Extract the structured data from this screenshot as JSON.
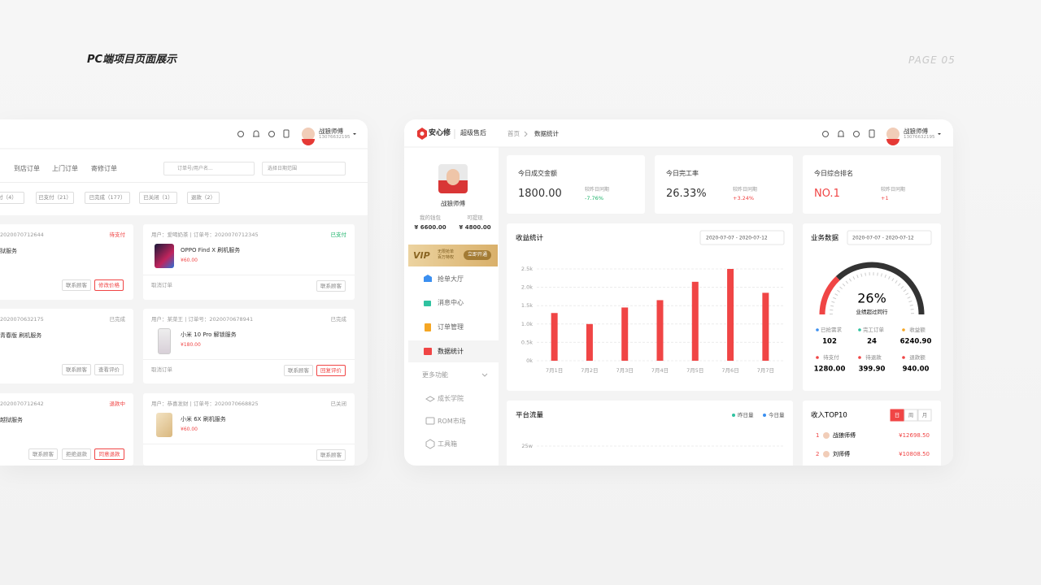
{
  "page": {
    "title": "PC端项目页面展示",
    "page_no": "PAGE 05"
  },
  "left_panel": {
    "user": {
      "name": "战狼师傅",
      "phone": "13076632195"
    },
    "tabs": [
      "到店订单",
      "上门订单",
      "寄修订单"
    ],
    "search_placeholder": "订单号/用户名...",
    "date_placeholder": "选择日期范围",
    "filters": [
      "付（4）",
      "已支付（21）",
      "已完成（177）",
      "已关闭（1）",
      "退款（2）"
    ],
    "orders": [
      {
        "meta": "2020070712644",
        "status": "待支付",
        "service": "狱服务",
        "buttons": [
          "联系顾客",
          "修改价格"
        ]
      },
      {
        "meta": "2020070632175",
        "status": "已完成",
        "service": "青春版 刷机服务",
        "buttons": [
          "联系顾客",
          "查看评价"
        ]
      },
      {
        "meta": "2020070712642",
        "status": "退款中",
        "service": "越狱服务",
        "buttons": [
          "联系顾客",
          "拒绝退款",
          "同意退款"
        ]
      },
      {
        "meta": "用户：爱喝奶茶 | 订单号：2020070712345",
        "status": "已支付",
        "service": "OPPO Find X 刷机服务",
        "price": "¥60.00",
        "cancel": "取消订单",
        "buttons": [
          "联系顾客"
        ]
      },
      {
        "meta": "用户：某菜王 | 订单号：2020070678941",
        "status": "已完成",
        "service": "小米 10 Pro 解锁服务",
        "price": "¥180.00",
        "cancel": "取消订单",
        "buttons": [
          "联系顾客",
          "回复评价"
        ]
      },
      {
        "meta": "用户：恭喜发财 | 订单号：2020070668825",
        "status": "已关闭",
        "service": "小米 6X 刷机服务",
        "price": "¥60.00",
        "buttons": [
          "联系顾客"
        ]
      }
    ]
  },
  "right_panel": {
    "brand": "安心修",
    "product": "超级售后",
    "breadcrumb": [
      "首页",
      "数据统计"
    ],
    "user": {
      "name": "战狼师傅",
      "phone": "13076632195"
    },
    "sidebar": {
      "name": "战狼师傅",
      "wallet_label": "我的钱包",
      "wallet": "¥ 6600.00",
      "withdraw_label": "可提现",
      "withdraw": "¥ 4800.00",
      "vip": "VIP",
      "vip_text": [
        "无限抢单",
        "百万特权"
      ],
      "vip_button": "立即开通",
      "menu": [
        "抢单大厅",
        "消息中心",
        "订单管理",
        "数据统计"
      ],
      "more": "更多功能",
      "sub_menu": [
        "成长学院",
        "ROM市场",
        "工具箱"
      ]
    },
    "stats": [
      {
        "label": "今日成交金额",
        "value": "1800.00",
        "compare_label": "较昨日同期",
        "change": "-7.76%"
      },
      {
        "label": "今日完工率",
        "value": "26.33%",
        "compare_label": "较昨日同期",
        "change": "+3.24%"
      },
      {
        "label": "今日综合排名",
        "value": "NO.1",
        "compare_label": "较昨日同期",
        "change": "+1"
      }
    ],
    "business": {
      "title": "业务数据",
      "date_range": "2020-07-07 - 2020-07-12",
      "gauge": {
        "value": 26,
        "label": "26%",
        "caption": "业绩超过同行"
      },
      "items": [
        {
          "label": "已抢需求",
          "value": "102"
        },
        {
          "label": "完工订单",
          "value": "24"
        },
        {
          "label": "收益额",
          "value": "6240.90"
        },
        {
          "label": "待支付",
          "value": "1280.00"
        },
        {
          "label": "待退款",
          "value": "399.90"
        },
        {
          "label": "退款额",
          "value": "940.00"
        }
      ]
    },
    "traffic": {
      "title": "平台流量",
      "legend": [
        {
          "name": "昨日量",
          "color": "#2fc2a0"
        },
        {
          "name": "今日量",
          "color": "#3b8ff0"
        }
      ],
      "yticks": [
        {
          "value": 250000,
          "label": "25w"
        }
      ]
    },
    "top": {
      "title": "收入TOP10",
      "tabs": [
        "日",
        "周",
        "月"
      ],
      "rows": [
        {
          "rank": "1",
          "name": "战狼师傅",
          "amount": "¥12698.50"
        },
        {
          "rank": "2",
          "name": "刘师傅",
          "amount": "¥10808.50"
        }
      ]
    }
  },
  "chart_data": {
    "type": "bar",
    "title": "收益统计",
    "date_range": "2020-07-07 - 2020-07-12",
    "categories": [
      "7月1日",
      "7月2日",
      "7月3日",
      "7月4日",
      "7月5日",
      "7月6日",
      "7月7日"
    ],
    "values": [
      1300,
      1000,
      1450,
      1650,
      2150,
      2500,
      1850
    ],
    "color": "#f04545",
    "ylim": [
      0,
      2500
    ],
    "yticks": [
      {
        "value": 0,
        "label": "0k"
      },
      {
        "value": 500,
        "label": "0.5k"
      },
      {
        "value": 1000,
        "label": "1.0k"
      },
      {
        "value": 1500,
        "label": "1.5k"
      },
      {
        "value": 2000,
        "label": "2.0k"
      },
      {
        "value": 2500,
        "label": "2.5k"
      }
    ],
    "grid": true
  }
}
